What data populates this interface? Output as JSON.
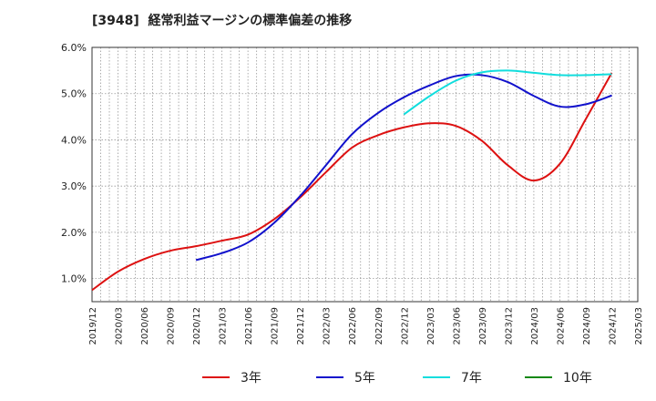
{
  "chart_data": {
    "type": "line",
    "title": "[3948]  経常利益マージンの標準偏差の推移",
    "xlabel": "",
    "ylabel": "",
    "ylim": [
      0.5,
      6.0
    ],
    "yticks": [
      "1.0%",
      "2.0%",
      "3.0%",
      "4.0%",
      "5.0%",
      "6.0%"
    ],
    "ytick_values": [
      1.0,
      2.0,
      3.0,
      4.0,
      5.0,
      6.0
    ],
    "xticks": [
      "2019/12",
      "2020/03",
      "2020/06",
      "2020/09",
      "2020/12",
      "2021/03",
      "2021/06",
      "2021/09",
      "2021/12",
      "2022/03",
      "2022/06",
      "2022/09",
      "2022/12",
      "2023/03",
      "2023/06",
      "2023/09",
      "2023/12",
      "2024/03",
      "2024/06",
      "2024/09",
      "2024/12",
      "2025/03"
    ],
    "grid": true,
    "legend_position": "bottom",
    "series": [
      {
        "name": "3年",
        "color": "#dd1111",
        "x": [
          "2019/12",
          "2020/03",
          "2020/06",
          "2020/09",
          "2020/12",
          "2021/03",
          "2021/06",
          "2021/09",
          "2021/12",
          "2022/03",
          "2022/06",
          "2022/09",
          "2022/12",
          "2023/03",
          "2023/06",
          "2023/09",
          "2023/12",
          "2024/03",
          "2024/06",
          "2024/09",
          "2024/12"
        ],
        "values": [
          0.75,
          1.15,
          1.42,
          1.6,
          1.7,
          1.82,
          1.95,
          2.28,
          2.75,
          3.3,
          3.83,
          4.1,
          4.27,
          4.36,
          4.3,
          3.98,
          3.45,
          3.12,
          3.48,
          4.45,
          5.45
        ]
      },
      {
        "name": "5年",
        "color": "#1111cc",
        "x": [
          "2020/12",
          "2021/03",
          "2021/06",
          "2021/09",
          "2021/12",
          "2022/03",
          "2022/06",
          "2022/09",
          "2022/12",
          "2023/03",
          "2023/06",
          "2023/09",
          "2023/12",
          "2024/03",
          "2024/06",
          "2024/09",
          "2024/12"
        ],
        "values": [
          1.4,
          1.55,
          1.78,
          2.2,
          2.78,
          3.45,
          4.12,
          4.58,
          4.92,
          5.18,
          5.38,
          5.4,
          5.25,
          4.95,
          4.72,
          4.77,
          4.96
        ]
      },
      {
        "name": "7年",
        "color": "#11dddd",
        "x": [
          "2022/12",
          "2023/03",
          "2023/06",
          "2023/09",
          "2023/12",
          "2024/03",
          "2024/06",
          "2024/09",
          "2024/12"
        ],
        "values": [
          4.55,
          4.95,
          5.28,
          5.46,
          5.5,
          5.45,
          5.4,
          5.4,
          5.42
        ]
      },
      {
        "name": "10年",
        "color": "#118811",
        "x": [],
        "values": []
      }
    ]
  }
}
